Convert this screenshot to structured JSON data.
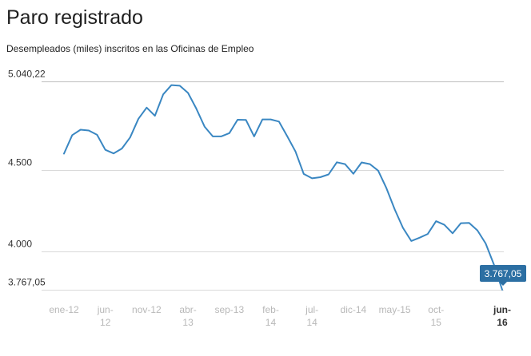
{
  "header": {
    "title": "Paro registrado",
    "subtitle": "Desempleados (miles) inscritos en las Oficinas de Empleo"
  },
  "colors": {
    "line": "#3a87c2",
    "badge": "#2c6fa3",
    "grid": "#d9d9d9",
    "axis_text_muted": "#b8b8b8"
  },
  "chart_data": {
    "type": "line",
    "title": "Paro registrado",
    "subtitle": "Desempleados (miles) inscritos en las Oficinas de Empleo",
    "ylim": [
      3767.05,
      5040.22
    ],
    "y_ticks": [
      {
        "value": 5040.22,
        "label": "5.040,22"
      },
      {
        "value": 4500,
        "label": "4.500"
      },
      {
        "value": 4000,
        "label": "4.000"
      },
      {
        "value": 3767.05,
        "label": "3.767,05"
      }
    ],
    "x_ticks": [
      {
        "index": 0,
        "lines": [
          "ene-12"
        ]
      },
      {
        "index": 5,
        "lines": [
          "jun-",
          "12"
        ]
      },
      {
        "index": 10,
        "lines": [
          "nov-12"
        ]
      },
      {
        "index": 15,
        "lines": [
          "abr-",
          "13"
        ]
      },
      {
        "index": 20,
        "lines": [
          "sep-13"
        ]
      },
      {
        "index": 25,
        "lines": [
          "feb-",
          "14"
        ]
      },
      {
        "index": 30,
        "lines": [
          "jul-",
          "14"
        ]
      },
      {
        "index": 35,
        "lines": [
          "dic-14"
        ]
      },
      {
        "index": 40,
        "lines": [
          "may-15"
        ]
      },
      {
        "index": 45,
        "lines": [
          "oct-",
          "15"
        ]
      },
      {
        "index": 53,
        "lines": [
          "jun-",
          "16"
        ]
      }
    ],
    "grid": true,
    "series": [
      {
        "x_start": "ene-12",
        "values": [
          4599,
          4712,
          4745,
          4740,
          4714,
          4622,
          4600,
          4630,
          4698,
          4812,
          4880,
          4830,
          4961,
          5018,
          5014,
          4970,
          4875,
          4764,
          4704,
          4704,
          4724,
          4806,
          4805,
          4704,
          4808,
          4808,
          4795,
          4705,
          4612,
          4475,
          4448,
          4455,
          4472,
          4546,
          4535,
          4476,
          4545,
          4535,
          4495,
          4388,
          4258,
          4145,
          4065,
          4085,
          4108,
          4186,
          4164,
          4112,
          4174,
          4176,
          4130,
          4050,
          3920,
          3767.05
        ]
      }
    ],
    "last_value_label": "3.767,05"
  }
}
